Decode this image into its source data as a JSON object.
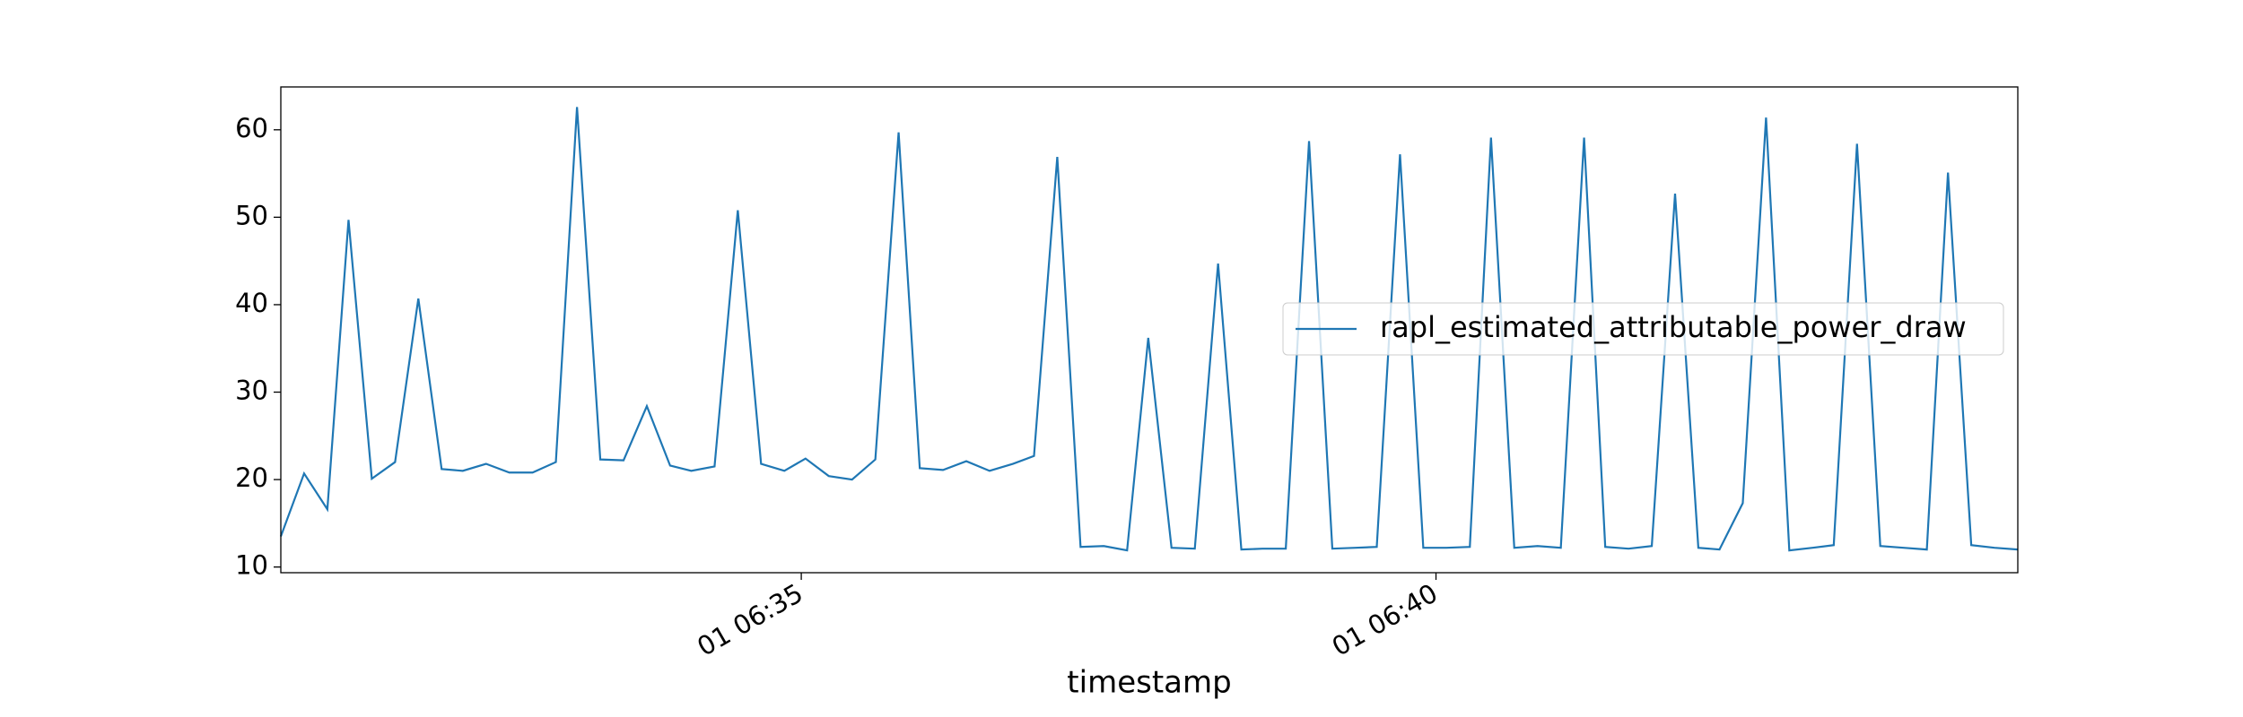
{
  "chart_data": {
    "type": "line",
    "x_label": "timestamp",
    "x": [
      "01 06:30:54",
      "01 06:31:05",
      "01 06:31:16",
      "01 06:31:26",
      "01 06:31:37",
      "01 06:31:48",
      "01 06:31:59",
      "01 06:32:10",
      "01 06:32:20",
      "01 06:32:31",
      "01 06:32:42",
      "01 06:32:53",
      "01 06:33:04",
      "01 06:33:14",
      "01 06:33:25",
      "01 06:33:36",
      "01 06:33:47",
      "01 06:33:58",
      "01 06:34:08",
      "01 06:34:19",
      "01 06:34:30",
      "01 06:34:41",
      "01 06:34:52",
      "01 06:35:02",
      "01 06:35:13",
      "01 06:35:24",
      "01 06:35:35",
      "01 06:35:46",
      "01 06:35:56",
      "01 06:36:07",
      "01 06:36:18",
      "01 06:36:29",
      "01 06:36:40",
      "01 06:36:50",
      "01 06:37:01",
      "01 06:37:12",
      "01 06:37:23",
      "01 06:37:34",
      "01 06:37:44",
      "01 06:37:55",
      "01 06:38:06",
      "01 06:38:17",
      "01 06:38:28",
      "01 06:38:38",
      "01 06:38:49",
      "01 06:39:00",
      "01 06:39:11",
      "01 06:39:22",
      "01 06:39:32",
      "01 06:39:43",
      "01 06:39:54",
      "01 06:40:05",
      "01 06:40:16",
      "01 06:40:26",
      "01 06:40:37",
      "01 06:40:48",
      "01 06:40:59",
      "01 06:41:10",
      "01 06:41:20",
      "01 06:41:31",
      "01 06:41:42",
      "01 06:41:53",
      "01 06:42:04",
      "01 06:42:14",
      "01 06:42:25",
      "01 06:42:36",
      "01 06:42:47",
      "01 06:42:58",
      "01 06:43:08",
      "01 06:43:19",
      "01 06:43:30",
      "01 06:43:41",
      "01 06:43:52",
      "01 06:44:02",
      "01 06:44:13",
      "01 06:44:24",
      "01 06:44:35"
    ],
    "series": [
      {
        "name": "rapl_estimated_attributable_power_draw",
        "color": "#1f77b4",
        "values": [
          13.5,
          20.7,
          16.6,
          49.7,
          20.1,
          22,
          40.7,
          21.2,
          21,
          21.8,
          20.8,
          20.8,
          22,
          62.6,
          22.3,
          22.2,
          28.4,
          21.6,
          21,
          21.5,
          50.8,
          21.8,
          21,
          22.4,
          20.4,
          20,
          22.3,
          59.7,
          21.3,
          21.1,
          22.1,
          21,
          21.8,
          22.7,
          56.9,
          12.3,
          12.4,
          11.9,
          36.2,
          12.2,
          12.1,
          44.7,
          12,
          12.1,
          12.1,
          58.7,
          12.1,
          12.2,
          12.3,
          57.2,
          12.2,
          12.2,
          12.3,
          59.1,
          12.2,
          12.4,
          12.2,
          59.1,
          12.3,
          12.1,
          12.4,
          52.7,
          12.2,
          12,
          17.3,
          61.4,
          11.9,
          12.2,
          12.5,
          58.4,
          12.4,
          12.2,
          12,
          55.1,
          12.5,
          12.2,
          12
        ]
      }
    ],
    "xlim": [
      "01 06:30:54",
      "01 06:44:35"
    ],
    "xticks": [
      {
        "value": "01 06:35:00",
        "label": "01 06:35"
      },
      {
        "value": "01 06:40:00",
        "label": "01 06:40"
      }
    ],
    "ylim": [
      9.35,
      64.9
    ],
    "yticks": [
      10,
      20,
      30,
      40,
      50,
      60
    ],
    "legend": "right"
  }
}
